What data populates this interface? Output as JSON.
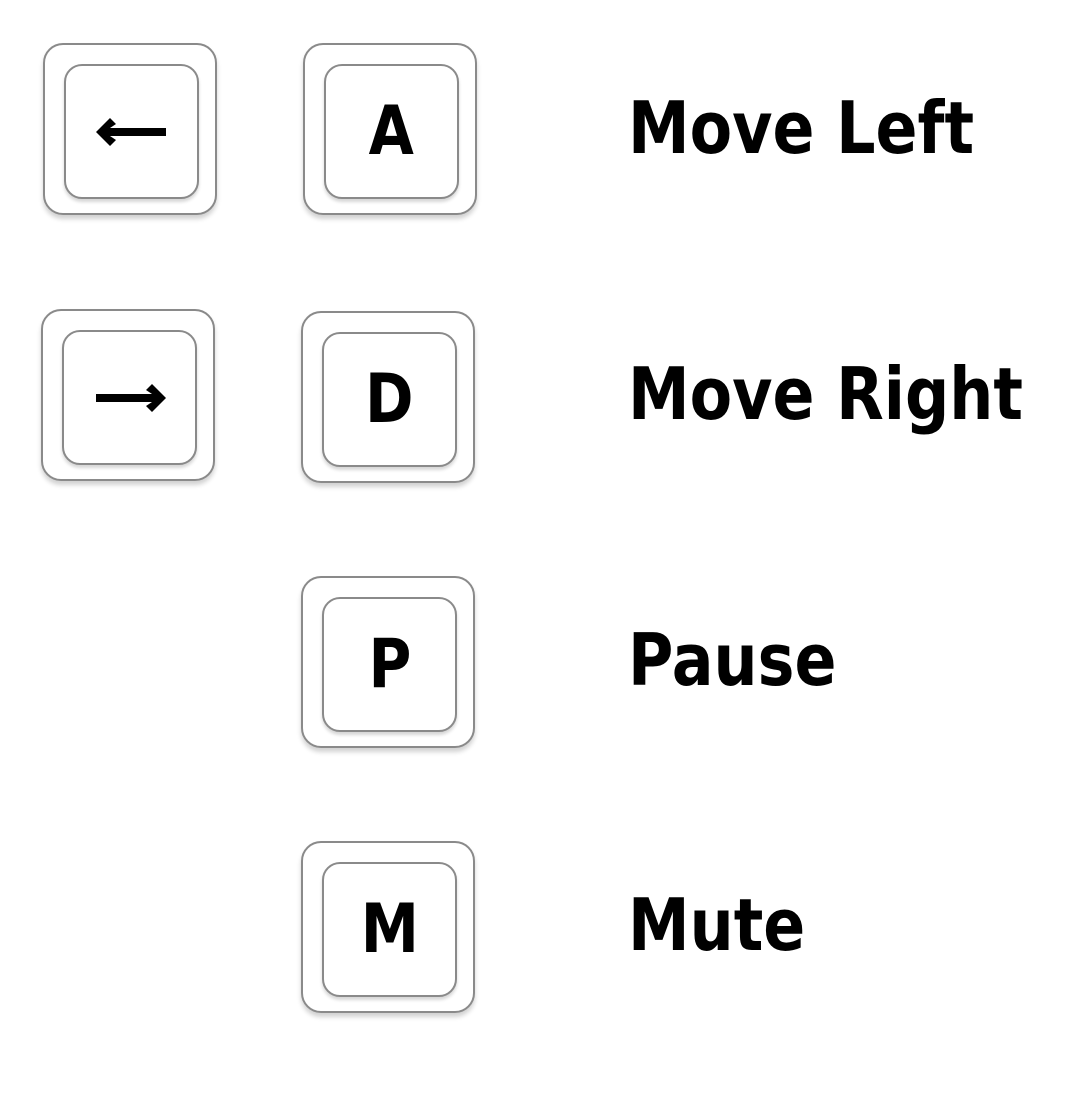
{
  "colors": {
    "background": "#ffffff",
    "key_border": "#8a8a8a",
    "text": "#000000"
  },
  "controls": [
    {
      "keys": [
        {
          "type": "icon",
          "icon": "arrow-left-icon"
        },
        {
          "type": "letter",
          "label": "A"
        }
      ],
      "action": "Move Left"
    },
    {
      "keys": [
        {
          "type": "icon",
          "icon": "arrow-right-icon"
        },
        {
          "type": "letter",
          "label": "D"
        }
      ],
      "action": "Move Right"
    },
    {
      "keys": [
        {
          "type": "letter",
          "label": "P"
        }
      ],
      "action": "Pause"
    },
    {
      "keys": [
        {
          "type": "letter",
          "label": "M"
        }
      ],
      "action": "Mute"
    }
  ]
}
